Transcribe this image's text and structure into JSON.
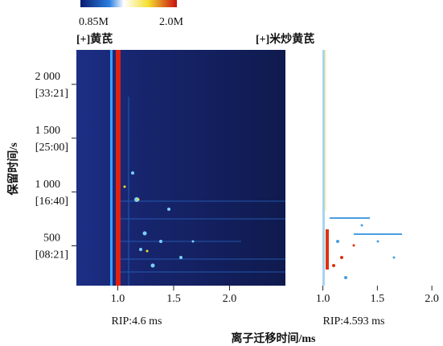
{
  "colorbar": {
    "min_label": "0.85M",
    "max_label": "2.0M"
  },
  "xlabel": "离子迁移时间/ms",
  "chart_data": [
    {
      "type": "heatmap",
      "title": "[+]黄芪",
      "ylabel": "保留时间/s",
      "annotation": "RIP:4.6 ms",
      "xlim": [
        0.63,
        2.5
      ],
      "xticks": [
        {
          "value": 1,
          "label": "1.0"
        },
        1.5,
        {
          "value": 2,
          "label": "2.0"
        }
      ],
      "ylim": [
        130,
        2320
      ],
      "yticks": [
        {
          "value": 500,
          "label": "500",
          "time": "[08:21]"
        },
        {
          "value": 1000,
          "label": "1 000",
          "time": "[16:40]"
        },
        {
          "value": 1500,
          "label": "1 500",
          "time": "[25:00]"
        },
        {
          "value": 2000,
          "label": "2 000",
          "time": "[33:21]"
        }
      ]
    },
    {
      "type": "heatmap",
      "title": "[+]米炒黄芪",
      "annotation": "RIP:4.593 ms",
      "xlim": [
        0.73,
        2.08
      ],
      "xticks": [
        {
          "value": 1,
          "label": "1.0"
        },
        1.5,
        {
          "value": 2,
          "label": "2.0"
        }
      ],
      "ylim": [
        130,
        2320
      ]
    }
  ]
}
